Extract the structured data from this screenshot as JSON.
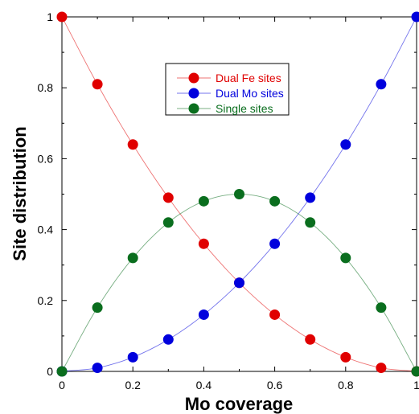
{
  "chart_data": {
    "type": "scatter",
    "xlabel": "Mo coverage",
    "ylabel": "Site distribution",
    "xlim": [
      0,
      1
    ],
    "ylim": [
      0,
      1
    ],
    "grid": false,
    "legend_position": "top-center",
    "x_ticks": [
      "0",
      "0.2",
      "0.4",
      "0.6",
      "0.8",
      "1"
    ],
    "y_ticks": [
      "0",
      "0.2",
      "0.4",
      "0.6",
      "0.8",
      "1"
    ],
    "series": [
      {
        "name": "Dual Fe sites",
        "color": "#e00000",
        "marker": "circle",
        "x": [
          0,
          0.1,
          0.2,
          0.3,
          0.4,
          0.5,
          0.6,
          0.7,
          0.8,
          0.9,
          1.0
        ],
        "y": [
          1,
          0.81,
          0.64,
          0.49,
          0.36,
          0.25,
          0.16,
          0.09,
          0.04,
          0.01,
          0
        ]
      },
      {
        "name": "Dual Mo sites",
        "color": "#0000dd",
        "marker": "circle",
        "x": [
          0,
          0.1,
          0.2,
          0.3,
          0.4,
          0.5,
          0.6,
          0.7,
          0.8,
          0.9,
          1.0
        ],
        "y": [
          0,
          0.01,
          0.04,
          0.09,
          0.16,
          0.25,
          0.36,
          0.49,
          0.64,
          0.81,
          1
        ]
      },
      {
        "name": "Single sites",
        "color": "#0a6e1e",
        "marker": "circle",
        "x": [
          0,
          0.1,
          0.2,
          0.3,
          0.4,
          0.5,
          0.6,
          0.7,
          0.8,
          0.9,
          1.0
        ],
        "y": [
          0,
          0.18,
          0.32,
          0.42,
          0.48,
          0.5,
          0.48,
          0.42,
          0.32,
          0.18,
          0
        ]
      }
    ]
  }
}
